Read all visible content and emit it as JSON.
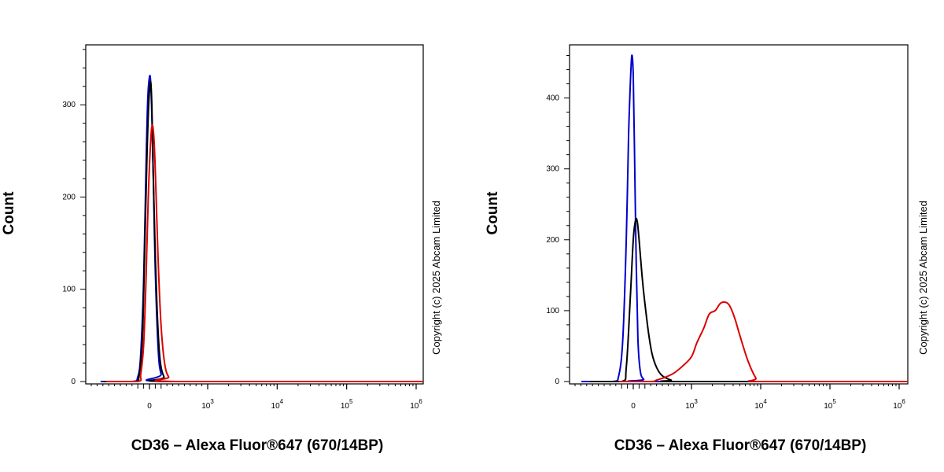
{
  "chart_data": [
    {
      "type": "line",
      "xlabel": "CD36 – Alexa Fluor®647 (670/14BP)",
      "ylabel": "Count",
      "copyright": "Copyright (c) 2025 Abcam Limited",
      "x_scale": "biexponential",
      "x_ticks": [
        {
          "value": 0,
          "base": "0",
          "exp": ""
        },
        {
          "value": 1000,
          "base": "10",
          "exp": "3"
        },
        {
          "value": 10000,
          "base": "10",
          "exp": "4"
        },
        {
          "value": 100000,
          "base": "10",
          "exp": "5"
        },
        {
          "value": 1000000,
          "base": "10",
          "exp": "6"
        }
      ],
      "y_ticks": [
        0,
        100,
        200,
        300
      ],
      "ylim": [
        0,
        365
      ],
      "series": [
        {
          "color": "#0000cc",
          "x": [
            -300,
            -200,
            -150,
            -100,
            -60,
            -30,
            0,
            20,
            40,
            70,
            100,
            150,
            200,
            300
          ],
          "y": [
            0,
            5,
            30,
            110,
            230,
            305,
            330,
            325,
            290,
            210,
            120,
            35,
            8,
            0
          ]
        },
        {
          "color": "#000000",
          "x": [
            -250,
            -180,
            -120,
            -80,
            -40,
            -10,
            20,
            40,
            60,
            90,
            130,
            180,
            250,
            350
          ],
          "y": [
            0,
            6,
            50,
            150,
            250,
            305,
            325,
            300,
            240,
            160,
            80,
            25,
            5,
            0
          ]
        },
        {
          "color": "#dd0000",
          "x": [
            -200,
            -150,
            -100,
            -60,
            -20,
            20,
            50,
            80,
            110,
            150,
            200,
            260,
            330,
            450
          ],
          "y": [
            0,
            8,
            40,
            110,
            200,
            260,
            278,
            260,
            210,
            130,
            60,
            20,
            5,
            0
          ]
        }
      ]
    },
    {
      "type": "line",
      "xlabel": "CD36 – Alexa Fluor®647 (670/14BP)",
      "ylabel": "Count",
      "copyright": "Copyright (c) 2025 Abcam Limited",
      "x_scale": "biexponential",
      "x_ticks": [
        {
          "value": 0,
          "base": "0",
          "exp": ""
        },
        {
          "value": 1000,
          "base": "10",
          "exp": "3"
        },
        {
          "value": 10000,
          "base": "10",
          "exp": "4"
        },
        {
          "value": 100000,
          "base": "10",
          "exp": "5"
        },
        {
          "value": 1000000,
          "base": "10",
          "exp": "6"
        }
      ],
      "y_ticks": [
        0,
        100,
        200,
        300,
        400
      ],
      "ylim": [
        0,
        475
      ],
      "series": [
        {
          "color": "#0000cc",
          "x": [
            -350,
            -250,
            -180,
            -120,
            -80,
            -40,
            -20,
            0,
            20,
            50,
            80,
            120,
            180,
            260
          ],
          "y": [
            0,
            8,
            60,
            200,
            350,
            440,
            460,
            430,
            330,
            170,
            60,
            15,
            3,
            0
          ]
        },
        {
          "color": "#000000",
          "x": [
            -200,
            -120,
            -50,
            0,
            40,
            70,
            100,
            150,
            200,
            260,
            320,
            400,
            500,
            650,
            800
          ],
          "y": [
            0,
            20,
            120,
            200,
            228,
            225,
            200,
            150,
            110,
            70,
            40,
            20,
            8,
            2,
            0
          ]
        },
        {
          "color": "#dd0000",
          "x": [
            300,
            400,
            550,
            700,
            850,
            1000,
            1200,
            1500,
            1800,
            2200,
            2600,
            3000,
            3500,
            4200,
            5000,
            6500,
            8500,
            10000
          ],
          "y": [
            0,
            2,
            6,
            12,
            22,
            35,
            55,
            75,
            95,
            100,
            110,
            112,
            108,
            90,
            65,
            30,
            5,
            0
          ]
        }
      ]
    }
  ]
}
